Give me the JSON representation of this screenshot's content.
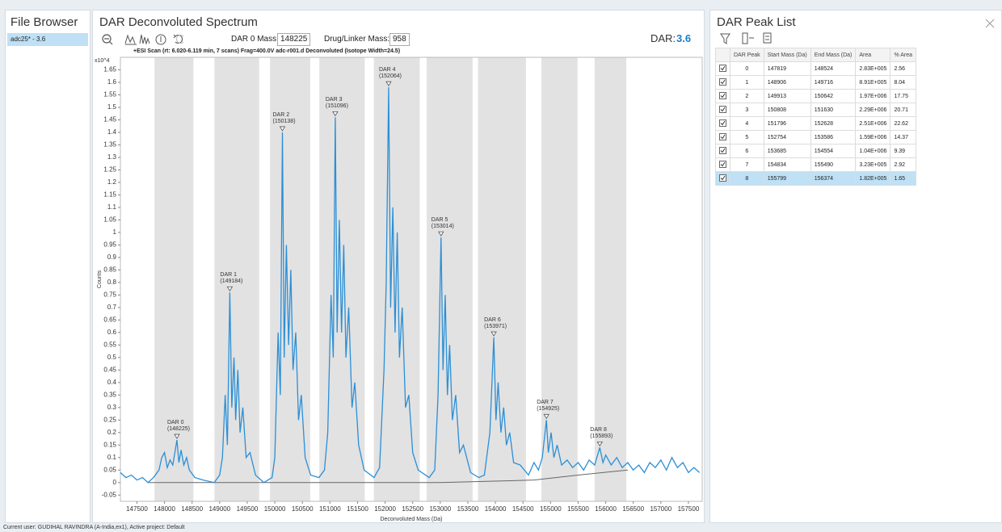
{
  "file_browser": {
    "title": "File Browser",
    "items": [
      "adc25* - 3.6"
    ]
  },
  "spectrum": {
    "title": "DAR Deconvoluted Spectrum",
    "dar0_mass_label": "DAR 0 Mass:",
    "dar0_mass": "148225",
    "drug_linker_label": "Drug/Linker Mass:",
    "drug_linker_mass": "958",
    "dar_label": "DAR:",
    "dar_value": "3.6",
    "scan_info": "+ESI Scan (rt: 6.020-6.119 min, 7 scans) Frag=400.0V adc-r001.d  Deconvoluted (Isotope Width=24.5)",
    "chart": {
      "type": "line",
      "exponent_label": "x10^4",
      "y_label": "Counts",
      "x_label": "Deconvoluted Mass (Da)",
      "xlim": [
        147200,
        157750
      ],
      "ylim": [
        -0.075,
        1.7
      ],
      "xticks": [
        147500,
        148000,
        148500,
        149000,
        149500,
        150000,
        150500,
        151000,
        151500,
        152000,
        152500,
        153000,
        153500,
        154000,
        154500,
        155000,
        155500,
        156000,
        156500,
        157000,
        157500
      ],
      "yticks": [
        -0.05,
        0,
        0.05,
        0.1,
        0.15,
        0.2,
        0.25,
        0.3,
        0.35,
        0.4,
        0.45,
        0.5,
        0.55,
        0.6,
        0.65,
        0.7,
        0.75,
        0.8,
        0.85,
        0.9,
        0.95,
        1,
        1.05,
        1.1,
        1.15,
        1.2,
        1.25,
        1.3,
        1.35,
        1.4,
        1.45,
        1.5,
        1.55,
        1.6,
        1.65
      ],
      "series": [
        {
          "color": "#2b8fd6",
          "x": [
            147200,
            147300,
            147400,
            147500,
            147600,
            147700,
            147800,
            147900,
            147950,
            148000,
            148050,
            148100,
            148150,
            148225,
            148260,
            148300,
            148350,
            148400,
            148450,
            148550,
            148700,
            148900,
            149000,
            149050,
            149100,
            149140,
            149184,
            149220,
            149260,
            149290,
            149330,
            149370,
            149420,
            149480,
            149550,
            149650,
            149800,
            149950,
            150000,
            150060,
            150100,
            150138,
            150170,
            150210,
            150250,
            150290,
            150330,
            150380,
            150430,
            150480,
            150550,
            150650,
            150800,
            150900,
            150960,
            151020,
            151060,
            151096,
            151130,
            151170,
            151210,
            151250,
            151290,
            151340,
            151400,
            151450,
            151520,
            151620,
            151800,
            151900,
            151980,
            152020,
            152064,
            152100,
            152140,
            152180,
            152220,
            152260,
            152310,
            152370,
            152430,
            152500,
            152600,
            152800,
            152900,
            152960,
            153014,
            153050,
            153090,
            153130,
            153170,
            153220,
            153280,
            153350,
            153420,
            153550,
            153700,
            153800,
            153900,
            153971,
            154010,
            154050,
            154100,
            154150,
            154200,
            154260,
            154330,
            154450,
            154600,
            154700,
            154780,
            154850,
            154925,
            154960,
            155010,
            155060,
            155120,
            155200,
            155300,
            155400,
            155500,
            155600,
            155700,
            155800,
            155893,
            155950,
            156000,
            156100,
            156200,
            156300,
            156400,
            156500,
            156600,
            156700,
            156800,
            156900,
            157000,
            157100,
            157200,
            157300,
            157400,
            157500,
            157600,
            157700
          ],
          "values": [
            0.04,
            0.02,
            0.03,
            0.01,
            0.02,
            0.0,
            0.02,
            0.05,
            0.1,
            0.12,
            0.06,
            0.09,
            0.07,
            0.17,
            0.08,
            0.13,
            0.07,
            0.1,
            0.05,
            0.02,
            0.01,
            0.0,
            0.03,
            0.1,
            0.35,
            0.15,
            0.76,
            0.3,
            0.5,
            0.25,
            0.45,
            0.2,
            0.3,
            0.1,
            0.12,
            0.03,
            0.0,
            0.02,
            0.1,
            0.6,
            0.35,
            1.4,
            0.5,
            0.95,
            0.55,
            0.85,
            0.45,
            0.6,
            0.25,
            0.35,
            0.1,
            0.03,
            0.02,
            0.05,
            0.2,
            0.75,
            0.5,
            1.46,
            0.6,
            1.05,
            0.6,
            0.95,
            0.5,
            0.7,
            0.3,
            0.4,
            0.15,
            0.05,
            0.02,
            0.06,
            0.45,
            0.8,
            1.58,
            0.7,
            1.1,
            0.6,
            1.0,
            0.5,
            0.7,
            0.3,
            0.35,
            0.12,
            0.05,
            0.02,
            0.05,
            0.35,
            0.98,
            0.45,
            0.75,
            0.35,
            0.55,
            0.25,
            0.35,
            0.12,
            0.15,
            0.04,
            0.02,
            0.03,
            0.2,
            0.58,
            0.25,
            0.4,
            0.2,
            0.3,
            0.15,
            0.2,
            0.08,
            0.07,
            0.03,
            0.08,
            0.05,
            0.1,
            0.25,
            0.12,
            0.2,
            0.1,
            0.15,
            0.07,
            0.09,
            0.06,
            0.08,
            0.05,
            0.09,
            0.07,
            0.14,
            0.08,
            0.11,
            0.07,
            0.1,
            0.06,
            0.08,
            0.05,
            0.07,
            0.04,
            0.08,
            0.06,
            0.09,
            0.05,
            0.1,
            0.06,
            0.08,
            0.04,
            0.06,
            0.04
          ]
        }
      ],
      "baseline": {
        "color": "#666666",
        "x": [
          147700,
          153000,
          154700,
          155500,
          156400
        ],
        "values": [
          0.0,
          0.0,
          0.01,
          0.03,
          0.05
        ]
      },
      "band_color": "#e2e2e2",
      "annotations": [
        {
          "label": "DAR 0",
          "mass_label": "(148225)",
          "x": 148225,
          "y": 0.17
        },
        {
          "label": "DAR 1",
          "mass_label": "(149184)",
          "x": 149184,
          "y": 0.76
        },
        {
          "label": "DAR 2",
          "mass_label": "(150138)",
          "x": 150138,
          "y": 1.4
        },
        {
          "label": "DAR 3",
          "mass_label": "(151096)",
          "x": 151096,
          "y": 1.46
        },
        {
          "label": "DAR 4",
          "mass_label": "(152064)",
          "x": 152064,
          "y": 1.58
        },
        {
          "label": "DAR 5",
          "mass_label": "(153014)",
          "x": 153014,
          "y": 0.98
        },
        {
          "label": "DAR 6",
          "mass_label": "(153971)",
          "x": 153971,
          "y": 0.58
        },
        {
          "label": "DAR 7",
          "mass_label": "(154925)",
          "x": 154925,
          "y": 0.25
        },
        {
          "label": "DAR 8",
          "mass_label": "(155893)",
          "x": 155893,
          "y": 0.14
        }
      ]
    }
  },
  "peak_list": {
    "title": "DAR Peak List",
    "table": {
      "columns": [
        "DAR Peak",
        "Start Mass (Da)",
        "End Mass (Da)",
        "Area",
        "% Area"
      ],
      "rows": [
        [
          0,
          147819,
          148524,
          "2.83E+005",
          2.56
        ],
        [
          1,
          148906,
          149716,
          "8.91E+005",
          8.04
        ],
        [
          2,
          149913,
          150642,
          "1.97E+006",
          17.75
        ],
        [
          3,
          150808,
          151630,
          "2.29E+006",
          20.71
        ],
        [
          4,
          151796,
          152628,
          "2.51E+006",
          22.62
        ],
        [
          5,
          152754,
          153586,
          "1.59E+006",
          14.37
        ],
        [
          6,
          153685,
          154554,
          "1.04E+006",
          9.39
        ],
        [
          7,
          154834,
          155490,
          "3.23E+005",
          2.92
        ],
        [
          8,
          155799,
          156374,
          "1.82E+005",
          1.65
        ]
      ],
      "selected_row": 8
    }
  },
  "status": "Current user: GUDIHAL RAVINDRA (A-India,ex1), Active project: Default"
}
